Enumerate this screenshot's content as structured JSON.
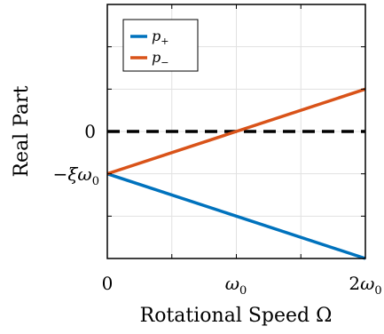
{
  "chart_data": {
    "type": "line",
    "title": "",
    "xlabel": "Rotational Speed Ω",
    "ylabel": "Real Part",
    "x_ticks": [
      {
        "value": 0,
        "label": "0"
      },
      {
        "value": 1,
        "label_main": "ω",
        "label_sub": "0"
      },
      {
        "value": 2,
        "label_prefix": "2",
        "label_main": "ω",
        "label_sub": "0"
      }
    ],
    "y_ticks": [
      {
        "value": 0,
        "label_main": "0",
        "label_sub": ""
      },
      {
        "value": -1,
        "label_main": "−ξω",
        "label_sub": "0"
      }
    ],
    "xlim": [
      0,
      2
    ],
    "ylim": [
      -3,
      3
    ],
    "grid": true,
    "legend": "top-left",
    "series": [
      {
        "name_main": "p",
        "name_sub": "+",
        "color": "#0072BD",
        "x": [
          0,
          2
        ],
        "y": [
          -1,
          -3
        ]
      },
      {
        "name_main": "p",
        "name_sub": "−",
        "color": "#D95319",
        "x": [
          0,
          2
        ],
        "y": [
          -1,
          1
        ]
      }
    ],
    "reference_line": {
      "y": 0,
      "style": "dashed",
      "color": "#000000"
    }
  }
}
